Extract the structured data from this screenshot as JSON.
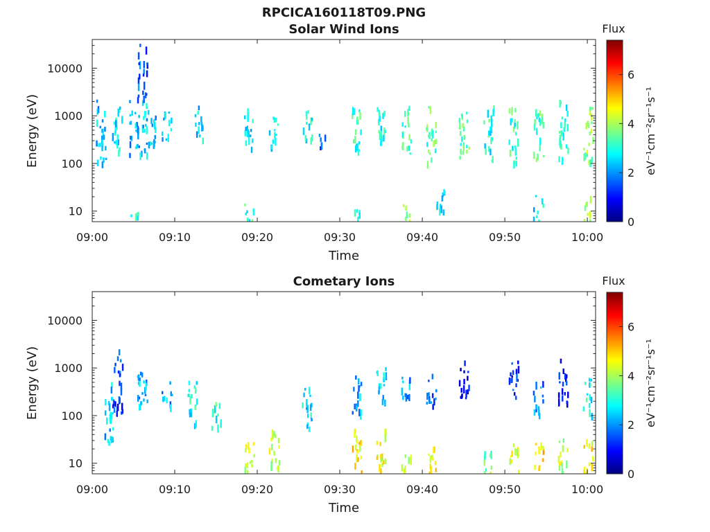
{
  "page": {
    "main_title": "RPCICA160118T09.PNG"
  },
  "colors": {
    "colormap": [
      "#00007f",
      "#0000ff",
      "#007fff",
      "#00ffff",
      "#7fff7f",
      "#ffff00",
      "#ff7f00",
      "#ff0000",
      "#7f0000"
    ]
  },
  "chart_data": [
    {
      "type": "heatmap",
      "title": "Solar Wind Ions",
      "xlabel": "Time",
      "ylabel": "Energy (eV)",
      "yscale": "log",
      "xlim": [
        "09:00",
        "10:01"
      ],
      "ylim": [
        6,
        40000
      ],
      "x_ticks": [
        "09:00",
        "09:10",
        "09:20",
        "09:30",
        "09:40",
        "09:50",
        "10:00"
      ],
      "y_ticks": [
        "10",
        "100",
        "1000",
        "10000"
      ],
      "colorbar": {
        "title": "Flux",
        "label": "eV⁻¹cm⁻²sr⁻¹s⁻¹",
        "range": [
          0,
          7.4
        ],
        "ticks": [
          "0",
          "2",
          "4",
          "6"
        ]
      },
      "bursts": [
        {
          "t": "09:01",
          "e": [
            100,
            2000
          ],
          "v": 2.3
        },
        {
          "t": "09:03",
          "e": [
            150,
            1500
          ],
          "v": 2.6
        },
        {
          "t": "09:05",
          "e": [
            150,
            2000
          ],
          "v": 2.2
        },
        {
          "t": "09:06",
          "e": [
            150,
            2000
          ],
          "v": 2.5
        },
        {
          "t": "09:06",
          "e": [
            2000,
            30000
          ],
          "v": 1.5
        },
        {
          "t": "09:07",
          "e": [
            200,
            1500
          ],
          "v": 2.4
        },
        {
          "t": "09:09",
          "e": [
            300,
            1200
          ],
          "v": 2.6
        },
        {
          "t": "09:13",
          "e": [
            300,
            1500
          ],
          "v": 2.5
        },
        {
          "t": "09:19",
          "e": [
            200,
            1500
          ],
          "v": 2.6
        },
        {
          "t": "09:22",
          "e": [
            200,
            1200
          ],
          "v": 2.7
        },
        {
          "t": "09:26",
          "e": [
            300,
            1500
          ],
          "v": 2.8
        },
        {
          "t": "09:28",
          "e": [
            200,
            400
          ],
          "v": 1.5
        },
        {
          "t": "09:32",
          "e": [
            150,
            1500
          ],
          "v": 3.2
        },
        {
          "t": "09:35",
          "e": [
            150,
            1500
          ],
          "v": 3.0
        },
        {
          "t": "09:38",
          "e": [
            150,
            1500
          ],
          "v": 3.3
        },
        {
          "t": "09:41",
          "e": [
            100,
            1500
          ],
          "v": 3.4
        },
        {
          "t": "09:45",
          "e": [
            100,
            1500
          ],
          "v": 3.5
        },
        {
          "t": "09:48",
          "e": [
            100,
            1500
          ],
          "v": 3.0
        },
        {
          "t": "09:51",
          "e": [
            100,
            1500
          ],
          "v": 3.2
        },
        {
          "t": "09:54",
          "e": [
            100,
            1500
          ],
          "v": 3.3
        },
        {
          "t": "09:57",
          "e": [
            100,
            2000
          ],
          "v": 3.1
        },
        {
          "t": "10:00",
          "e": [
            100,
            1500
          ],
          "v": 3.8
        },
        {
          "t": "09:05",
          "e": [
            6,
            12
          ],
          "v": 3.3
        },
        {
          "t": "09:19",
          "e": [
            6,
            14
          ],
          "v": 3.0
        },
        {
          "t": "09:32",
          "e": [
            6,
            12
          ],
          "v": 3.0
        },
        {
          "t": "09:38",
          "e": [
            6,
            14
          ],
          "v": 3.6
        },
        {
          "t": "09:42",
          "e": [
            8,
            30
          ],
          "v": 2.6
        },
        {
          "t": "09:54",
          "e": [
            6,
            20
          ],
          "v": 2.5
        },
        {
          "t": "10:00",
          "e": [
            6,
            20
          ],
          "v": 3.8
        }
      ]
    },
    {
      "type": "heatmap",
      "title": "Cometary Ions",
      "xlabel": "Time",
      "ylabel": "Energy (eV)",
      "yscale": "log",
      "xlim": [
        "09:00",
        "10:01"
      ],
      "ylim": [
        6,
        40000
      ],
      "x_ticks": [
        "09:00",
        "09:10",
        "09:20",
        "09:30",
        "09:40",
        "09:50",
        "10:00"
      ],
      "y_ticks": [
        "10",
        "100",
        "1000",
        "10000"
      ],
      "colorbar": {
        "title": "Flux",
        "label": "eV⁻¹cm⁻²sr⁻¹s⁻¹",
        "range": [
          0,
          7.4
        ],
        "ticks": [
          "0",
          "2",
          "4",
          "6"
        ]
      },
      "bursts": [
        {
          "t": "09:02",
          "e": [
            20,
            500
          ],
          "v": 2.4
        },
        {
          "t": "09:03",
          "e": [
            100,
            3000
          ],
          "v": 1.4
        },
        {
          "t": "09:06",
          "e": [
            100,
            1500
          ],
          "v": 2.2
        },
        {
          "t": "09:09",
          "e": [
            150,
            500
          ],
          "v": 2.2
        },
        {
          "t": "09:12",
          "e": [
            50,
            500
          ],
          "v": 2.8
        },
        {
          "t": "09:15",
          "e": [
            50,
            200
          ],
          "v": 3.0
        },
        {
          "t": "09:19",
          "e": [
            6,
            30
          ],
          "v": 4.4
        },
        {
          "t": "09:22",
          "e": [
            6,
            50
          ],
          "v": 4.2
        },
        {
          "t": "09:26",
          "e": [
            50,
            400
          ],
          "v": 2.6
        },
        {
          "t": "09:32",
          "e": [
            6,
            50
          ],
          "v": 4.8
        },
        {
          "t": "09:32",
          "e": [
            100,
            800
          ],
          "v": 2.2
        },
        {
          "t": "09:35",
          "e": [
            6,
            50
          ],
          "v": 4.6
        },
        {
          "t": "09:35",
          "e": [
            150,
            1000
          ],
          "v": 2.4
        },
        {
          "t": "09:38",
          "e": [
            6,
            14
          ],
          "v": 4.2
        },
        {
          "t": "09:38",
          "e": [
            150,
            600
          ],
          "v": 2.0
        },
        {
          "t": "09:41",
          "e": [
            6,
            25
          ],
          "v": 4.8
        },
        {
          "t": "09:41",
          "e": [
            150,
            800
          ],
          "v": 1.6
        },
        {
          "t": "09:45",
          "e": [
            200,
            1500
          ],
          "v": 0.8
        },
        {
          "t": "09:48",
          "e": [
            6,
            20
          ],
          "v": 3.6
        },
        {
          "t": "09:51",
          "e": [
            6,
            25
          ],
          "v": 4.2
        },
        {
          "t": "09:51",
          "e": [
            200,
            1500
          ],
          "v": 1.2
        },
        {
          "t": "09:54",
          "e": [
            6,
            25
          ],
          "v": 4.8
        },
        {
          "t": "09:54",
          "e": [
            100,
            500
          ],
          "v": 1.8
        },
        {
          "t": "09:57",
          "e": [
            6,
            30
          ],
          "v": 4.2
        },
        {
          "t": "09:57",
          "e": [
            150,
            1500
          ],
          "v": 1.0
        },
        {
          "t": "10:00",
          "e": [
            6,
            30
          ],
          "v": 4.6
        },
        {
          "t": "10:00",
          "e": [
            100,
            600
          ],
          "v": 2.8
        }
      ]
    }
  ]
}
